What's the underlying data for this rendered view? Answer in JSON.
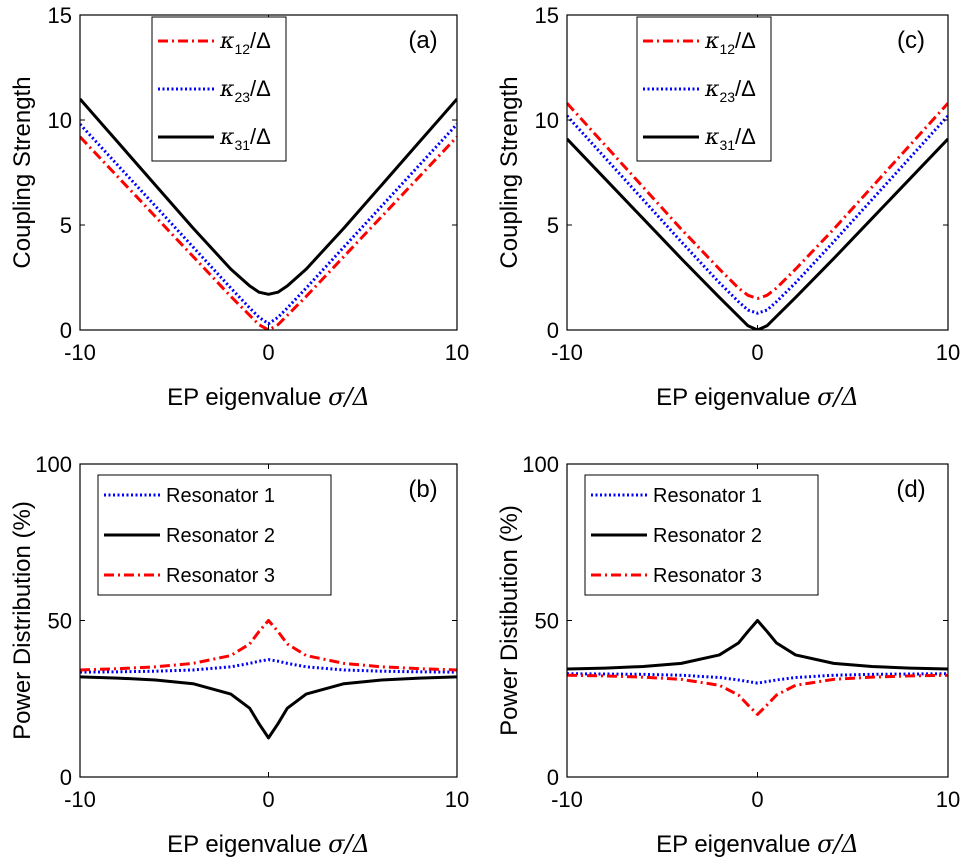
{
  "chart_data": [
    {
      "panel": "(a)",
      "type": "line",
      "xlabel_text": "EP eigenvalue ",
      "xlabel_math": "σ/Δ",
      "ylabel": "Coupling Strength",
      "xlim": [
        -10,
        10
      ],
      "ylim": [
        0,
        15
      ],
      "xticks": [
        "-10",
        "0",
        "10"
      ],
      "yticks": [
        "0",
        "5",
        "10",
        "15"
      ],
      "legend": {
        "placement": "top-center"
      },
      "series": [
        {
          "name_sym": "κ",
          "name_sub": "12",
          "name_tail": "/Δ",
          "color": "#ff0000",
          "style": "dashdot",
          "x": [
            -10,
            -8,
            -6,
            -4,
            -2,
            -1,
            -0.5,
            0,
            0.5,
            1,
            2,
            4,
            6,
            8,
            10
          ],
          "y": [
            9.2,
            7.3,
            5.4,
            3.5,
            1.6,
            0.7,
            0.25,
            0.0,
            0.25,
            0.7,
            1.6,
            3.5,
            5.4,
            7.3,
            9.2
          ]
        },
        {
          "name_sym": "κ",
          "name_sub": "23",
          "name_tail": "/Δ",
          "color": "#0000ff",
          "style": "dotted",
          "x": [
            -10,
            -8,
            -6,
            -4,
            -2,
            -1,
            -0.5,
            0,
            0.5,
            1,
            2,
            4,
            6,
            8,
            10
          ],
          "y": [
            9.8,
            7.85,
            5.9,
            3.95,
            2.0,
            1.05,
            0.6,
            0.3,
            0.6,
            1.05,
            2.0,
            3.95,
            5.9,
            7.85,
            9.8
          ]
        },
        {
          "name_sym": "κ",
          "name_sub": "31",
          "name_tail": "/Δ",
          "color": "#000000",
          "style": "solid",
          "x": [
            -10,
            -8,
            -6,
            -4,
            -2,
            -1,
            -0.5,
            0,
            0.5,
            1,
            2,
            4,
            6,
            8,
            10
          ],
          "y": [
            11.0,
            8.95,
            6.9,
            4.85,
            2.9,
            2.1,
            1.8,
            1.7,
            1.8,
            2.1,
            2.9,
            4.85,
            6.9,
            8.95,
            11.0
          ]
        }
      ]
    },
    {
      "panel": "(b)",
      "type": "line",
      "xlabel_text": "EP eigenvalue ",
      "xlabel_math": "σ/Δ",
      "ylabel": "Power Distribution (%)",
      "xlim": [
        -10,
        10
      ],
      "ylim": [
        0,
        100
      ],
      "xticks": [
        "-10",
        "0",
        "10"
      ],
      "yticks": [
        "0",
        "50",
        "100"
      ],
      "legend": {
        "placement": "top-left"
      },
      "series": [
        {
          "name": "Resonator 1",
          "color": "#0000ff",
          "style": "dotted",
          "x": [
            -10,
            -8,
            -6,
            -4,
            -2,
            -1,
            -0.5,
            0,
            0.5,
            1,
            2,
            4,
            6,
            8,
            10
          ],
          "y": [
            33.5,
            33.6,
            33.8,
            34.2,
            35.2,
            36.3,
            37.0,
            37.5,
            37.0,
            36.3,
            35.2,
            34.2,
            33.8,
            33.6,
            33.5
          ]
        },
        {
          "name": "Resonator 2",
          "color": "#000000",
          "style": "solid",
          "x": [
            -10,
            -8,
            -6,
            -4,
            -2,
            -1,
            -0.5,
            0,
            0.5,
            1,
            2,
            4,
            6,
            8,
            10
          ],
          "y": [
            32.0,
            31.6,
            31.0,
            29.8,
            26.5,
            22.0,
            17.0,
            12.5,
            17.0,
            22.0,
            26.5,
            29.8,
            31.0,
            31.6,
            32.0
          ]
        },
        {
          "name": "Resonator 3",
          "color": "#ff0000",
          "style": "dashdot",
          "x": [
            -10,
            -8,
            -6,
            -4,
            -2,
            -1,
            -0.5,
            0,
            0.5,
            1,
            2,
            4,
            6,
            8,
            10
          ],
          "y": [
            34.2,
            34.6,
            35.2,
            36.3,
            38.8,
            42.5,
            46.5,
            50.0,
            46.5,
            42.5,
            38.8,
            36.3,
            35.2,
            34.6,
            34.2
          ]
        }
      ]
    },
    {
      "panel": "(c)",
      "type": "line",
      "xlabel_text": "EP eigenvalue ",
      "xlabel_math": "σ/Δ",
      "ylabel": "Coupling Strength",
      "xlim": [
        -10,
        10
      ],
      "ylim": [
        0,
        15
      ],
      "xticks": [
        "-10",
        "0",
        "10"
      ],
      "yticks": [
        "0",
        "5",
        "10",
        "15"
      ],
      "legend": {
        "placement": "top-center"
      },
      "series": [
        {
          "name_sym": "κ",
          "name_sub": "12",
          "name_tail": "/Δ",
          "color": "#ff0000",
          "style": "dashdot",
          "x": [
            -10,
            -8,
            -6,
            -4,
            -2,
            -1,
            -0.5,
            0,
            0.5,
            1,
            2,
            4,
            6,
            8,
            10
          ],
          "y": [
            10.8,
            8.8,
            6.8,
            4.8,
            2.9,
            2.0,
            1.65,
            1.5,
            1.65,
            2.0,
            2.9,
            4.8,
            6.8,
            8.8,
            10.8
          ]
        },
        {
          "name_sym": "κ",
          "name_sub": "23",
          "name_tail": "/Δ",
          "color": "#0000ff",
          "style": "dotted",
          "x": [
            -10,
            -8,
            -6,
            -4,
            -2,
            -1,
            -0.5,
            0,
            0.5,
            1,
            2,
            4,
            6,
            8,
            10
          ],
          "y": [
            10.2,
            8.2,
            6.2,
            4.2,
            2.25,
            1.35,
            0.95,
            0.8,
            0.95,
            1.35,
            2.25,
            4.2,
            6.2,
            8.2,
            10.2
          ]
        },
        {
          "name_sym": "κ",
          "name_sub": "31",
          "name_tail": "/Δ",
          "color": "#000000",
          "style": "solid",
          "x": [
            -10,
            -8,
            -6,
            -4,
            -2,
            -1,
            -0.5,
            0,
            0.5,
            1,
            2,
            4,
            6,
            8,
            10
          ],
          "y": [
            9.1,
            7.2,
            5.3,
            3.4,
            1.55,
            0.65,
            0.2,
            0.0,
            0.2,
            0.65,
            1.55,
            3.4,
            5.3,
            7.2,
            9.1
          ]
        }
      ]
    },
    {
      "panel": "(d)",
      "type": "line",
      "xlabel_text": "EP eigenvalue ",
      "xlabel_math": "σ/Δ",
      "ylabel": "Power Distibution (%)",
      "xlim": [
        -10,
        10
      ],
      "ylim": [
        0,
        100
      ],
      "xticks": [
        "-10",
        "0",
        "10"
      ],
      "yticks": [
        "0",
        "50",
        "100"
      ],
      "legend": {
        "placement": "top-left"
      },
      "series": [
        {
          "name": "Resonator 1",
          "color": "#0000ff",
          "style": "dotted",
          "x": [
            -10,
            -8,
            -6,
            -4,
            -2,
            -1,
            -0.5,
            0,
            0.5,
            1,
            2,
            4,
            6,
            8,
            10
          ],
          "y": [
            33.0,
            32.9,
            32.8,
            32.5,
            31.8,
            31.0,
            30.5,
            30.0,
            30.5,
            31.0,
            31.8,
            32.5,
            32.8,
            32.9,
            33.0
          ]
        },
        {
          "name": "Resonator 2",
          "color": "#000000",
          "style": "solid",
          "x": [
            -10,
            -8,
            -6,
            -4,
            -2,
            -1,
            -0.5,
            0,
            0.5,
            1,
            2,
            4,
            6,
            8,
            10
          ],
          "y": [
            34.5,
            34.8,
            35.3,
            36.3,
            39.0,
            42.8,
            46.5,
            50.0,
            46.5,
            42.8,
            39.0,
            36.3,
            35.3,
            34.8,
            34.5
          ]
        },
        {
          "name": "Resonator 3",
          "color": "#ff0000",
          "style": "dashdot",
          "x": [
            -10,
            -8,
            -6,
            -4,
            -2,
            -1,
            -0.5,
            0,
            0.5,
            1,
            2,
            4,
            6,
            8,
            10
          ],
          "y": [
            32.5,
            32.3,
            31.9,
            31.2,
            29.3,
            26.2,
            23.0,
            20.0,
            23.0,
            26.2,
            29.3,
            31.2,
            31.9,
            32.3,
            32.5
          ]
        }
      ]
    }
  ]
}
